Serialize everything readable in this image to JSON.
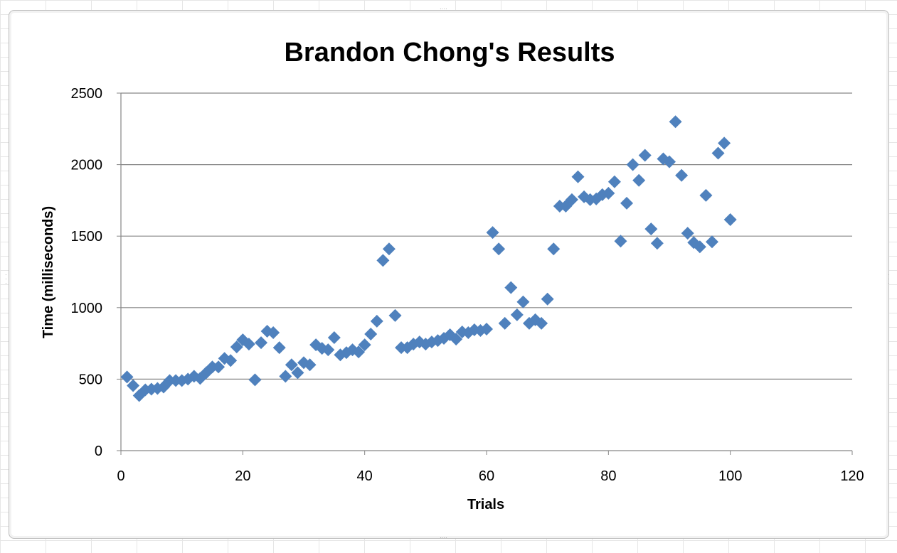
{
  "chart_data": {
    "type": "scatter",
    "title": "Brandon Chong's Results",
    "xlabel": "Trials",
    "ylabel": "Time (milliseconds)",
    "xlim": [
      0,
      120
    ],
    "ylim": [
      0,
      2500
    ],
    "xticks": [
      "0",
      "20",
      "40",
      "60",
      "80",
      "100",
      "120"
    ],
    "yticks": [
      "0",
      "500",
      "1000",
      "1500",
      "2000",
      "2500"
    ],
    "grid": "horizontal",
    "legend": "none",
    "marker": "diamond",
    "marker_color": "#4f81bd",
    "series": [
      {
        "x": [
          1,
          2,
          3,
          4,
          5,
          6,
          7,
          8,
          9,
          10,
          11,
          12,
          13,
          14,
          15,
          16,
          17,
          18,
          19,
          20,
          21,
          22,
          23,
          24,
          25,
          26,
          27,
          28,
          29,
          30,
          31,
          32,
          33,
          34,
          35,
          36,
          37,
          38,
          39,
          40,
          41,
          42,
          43,
          44,
          45,
          46,
          47,
          48,
          49,
          50,
          51,
          52,
          53,
          54,
          55,
          56,
          57,
          58,
          59,
          60,
          61,
          62,
          63,
          64,
          65,
          66,
          67,
          68,
          69,
          70,
          71,
          72,
          73,
          74,
          75,
          76,
          77,
          78,
          79,
          80,
          81,
          82,
          83,
          84,
          85,
          86,
          87,
          88,
          89,
          90,
          91,
          92,
          93,
          94,
          95,
          96,
          97,
          98,
          99,
          100
        ],
        "y": [
          515,
          455,
          385,
          425,
          430,
          435,
          445,
          490,
          490,
          490,
          500,
          520,
          505,
          545,
          585,
          585,
          645,
          630,
          725,
          775,
          745,
          495,
          755,
          835,
          825,
          720,
          520,
          600,
          545,
          615,
          600,
          740,
          715,
          705,
          790,
          670,
          685,
          705,
          690,
          740,
          815,
          905,
          1330,
          1410,
          945,
          720,
          720,
          745,
          760,
          745,
          760,
          770,
          785,
          810,
          780,
          830,
          825,
          845,
          840,
          850,
          1525,
          1410,
          890,
          1140,
          950,
          1040,
          890,
          915,
          890,
          1060,
          1410,
          1710,
          1710,
          1755,
          1915,
          1775,
          1755,
          1760,
          1790,
          1800,
          1880,
          1465,
          1730,
          2000,
          1890,
          2065,
          1550,
          1450,
          2040,
          2020,
          2300,
          1925,
          1520,
          1455,
          1425,
          1785,
          1460,
          2080,
          2150,
          1615
        ]
      }
    ]
  }
}
